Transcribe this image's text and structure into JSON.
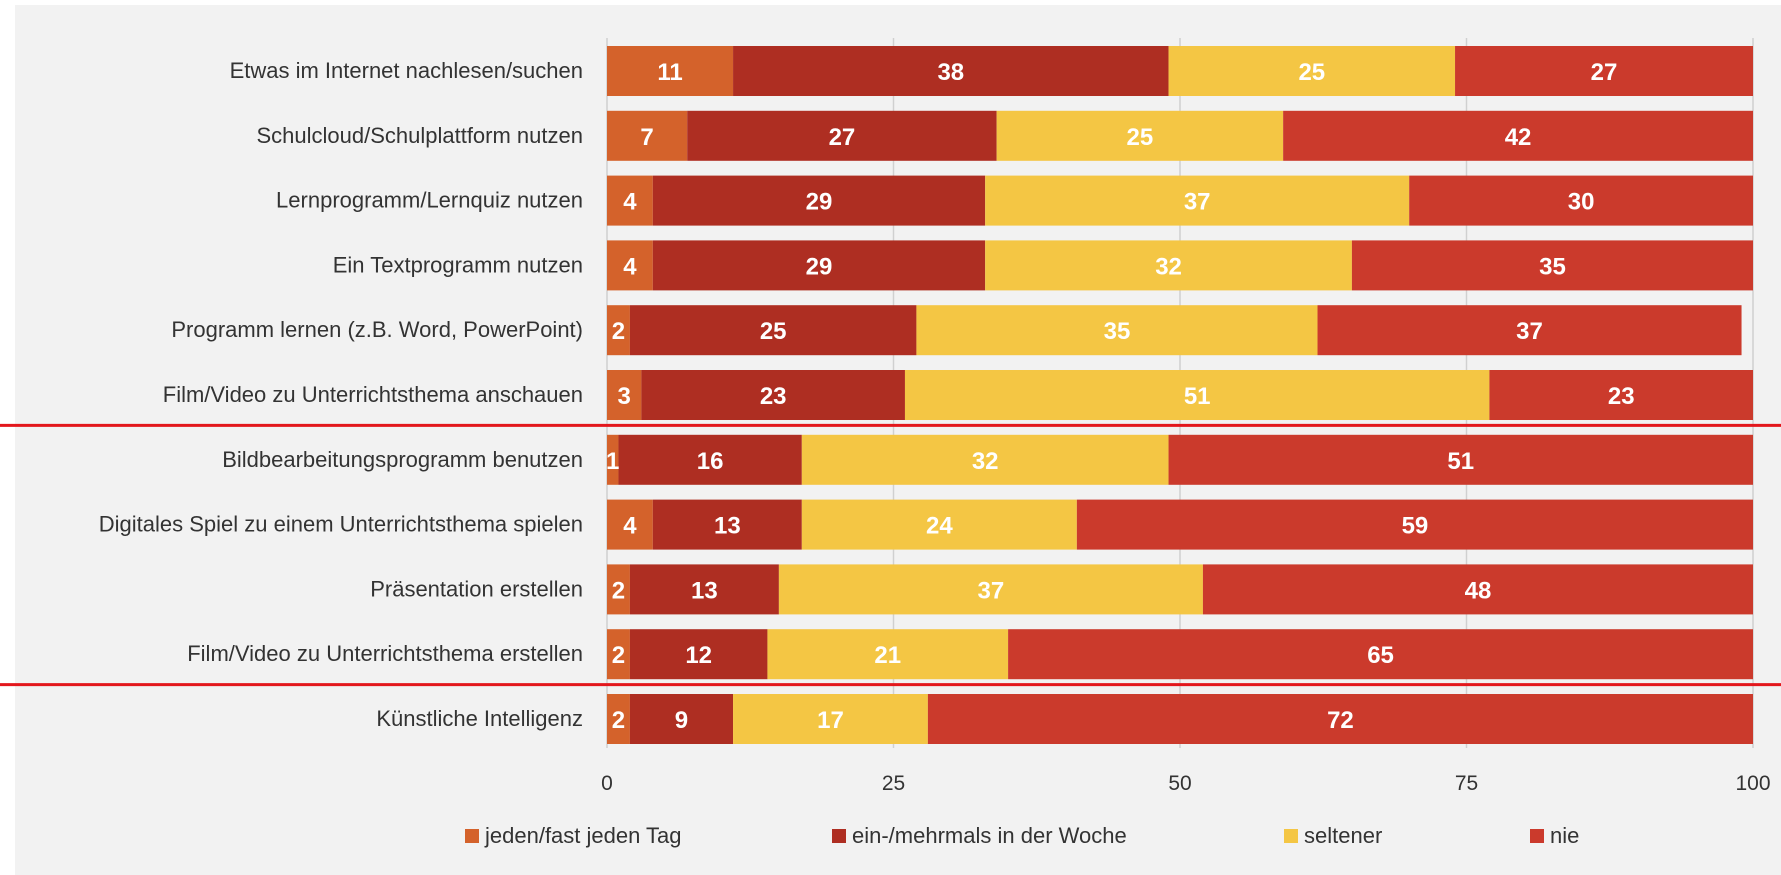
{
  "chart_data": {
    "type": "bar",
    "orientation": "horizontal",
    "stacked": true,
    "categories": [
      "Etwas im Internet nachlesen/suchen",
      "Schulcloud/Schulplattform nutzen",
      "Lernprogramm/Lernquiz nutzen",
      "Ein Textprogramm nutzen",
      "Programm lernen (z.B. Word, PowerPoint)",
      "Film/Video zu Unterrichtsthema anschauen",
      "Bildbearbeitungsprogramm benutzen",
      "Digitales Spiel zu einem Unterrichtsthema spielen",
      "Präsentation erstellen",
      "Film/Video zu Unterrichtsthema erstellen",
      "Künstliche Intelligenz"
    ],
    "series": [
      {
        "name": "jeden/fast jeden Tag",
        "color": "#D4622B",
        "values": [
          11,
          7,
          4,
          4,
          2,
          3,
          1,
          4,
          2,
          2,
          2
        ]
      },
      {
        "name": "ein-/mehrmals in der Woche",
        "color": "#AE2E22",
        "values": [
          38,
          27,
          29,
          29,
          25,
          23,
          16,
          13,
          13,
          12,
          9
        ]
      },
      {
        "name": "seltener",
        "color": "#F4C644",
        "values": [
          25,
          25,
          37,
          32,
          35,
          51,
          32,
          24,
          37,
          21,
          17
        ]
      },
      {
        "name": "nie",
        "color": "#CB3A2C",
        "values": [
          27,
          42,
          30,
          35,
          37,
          23,
          51,
          59,
          48,
          65,
          72
        ]
      }
    ],
    "xlim": [
      0,
      100
    ],
    "xticks": [
      "0",
      "25",
      "50",
      "75",
      "100"
    ],
    "grid": true,
    "legend_position": "bottom",
    "separator_lines_after": [
      "Film/Video zu Unterrichtsthema anschauen",
      "Film/Video zu Unterrichtsthema erstellen"
    ],
    "separator_color": "#E3171C",
    "background_color": "#F2F2F2",
    "title": "",
    "xlabel": "",
    "ylabel": ""
  }
}
